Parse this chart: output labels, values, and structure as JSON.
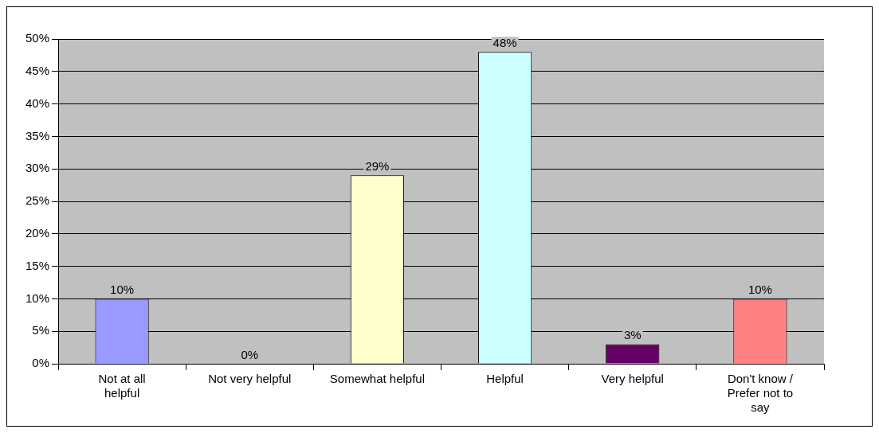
{
  "chart_data": {
    "type": "bar",
    "categories": [
      "Not at all helpful",
      "Not very helpful",
      "Somewhat helpful",
      "Helpful",
      "Very helpful",
      "Don't know / Prefer not to say"
    ],
    "values": [
      10,
      0,
      29,
      48,
      3,
      10
    ],
    "colors": [
      "#9999ff",
      "#993366",
      "#ffffcc",
      "#ccffff",
      "#660066",
      "#ff8080"
    ],
    "ylim": [
      0,
      50
    ],
    "yticks": [
      {
        "value": 0,
        "label": "0%"
      },
      {
        "value": 5,
        "label": "5%"
      },
      {
        "value": 10,
        "label": "10%"
      },
      {
        "value": 15,
        "label": "15%"
      },
      {
        "value": 20,
        "label": "20%"
      },
      {
        "value": 25,
        "label": "25%"
      },
      {
        "value": 30,
        "label": "30%"
      },
      {
        "value": 35,
        "label": "35%"
      },
      {
        "value": 40,
        "label": "40%"
      },
      {
        "value": 45,
        "label": "45%"
      },
      {
        "value": 50,
        "label": "50%"
      }
    ],
    "value_labels": [
      "10%",
      "0%",
      "29%",
      "48%",
      "3%",
      "10%"
    ],
    "grid": "y",
    "legend": false
  }
}
